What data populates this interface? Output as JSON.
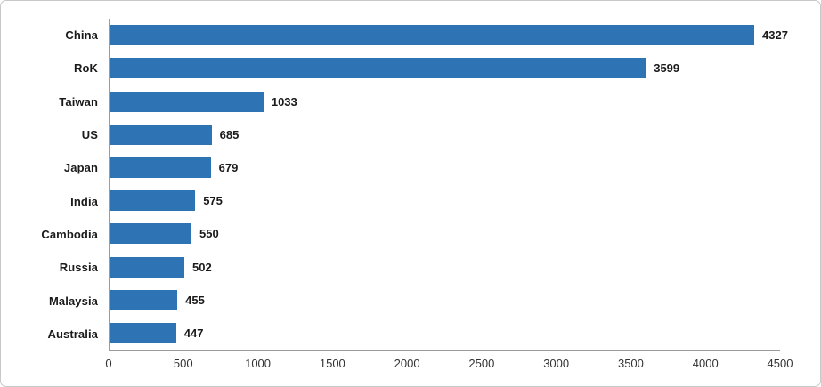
{
  "chart_data": {
    "type": "bar",
    "orientation": "horizontal",
    "title": "",
    "xlabel": "",
    "ylabel": "",
    "categories": [
      "China",
      "RoK",
      "Taiwan",
      "US",
      "Japan",
      "India",
      "Cambodia",
      "Russia",
      "Malaysia",
      "Australia"
    ],
    "values": [
      4327,
      3599,
      1033,
      685,
      679,
      575,
      550,
      502,
      455,
      447
    ],
    "data_labels": [
      "4327",
      "3599",
      "1033",
      "685",
      "679",
      "575",
      "550",
      "502",
      "455",
      "447"
    ],
    "xlim": [
      0,
      4500
    ],
    "x_ticks": [
      "0",
      "500",
      "1000",
      "1500",
      "2000",
      "2500",
      "3000",
      "3500",
      "4000",
      "4500"
    ],
    "grid": false,
    "legend": null
  },
  "colors": {
    "bar": "#2e74b5",
    "axis_line": "#9b9b9b",
    "label_text": "#1a1a1a",
    "tick_text": "#333333",
    "frame_border": "#c9c9c9",
    "background": "#ffffff"
  }
}
